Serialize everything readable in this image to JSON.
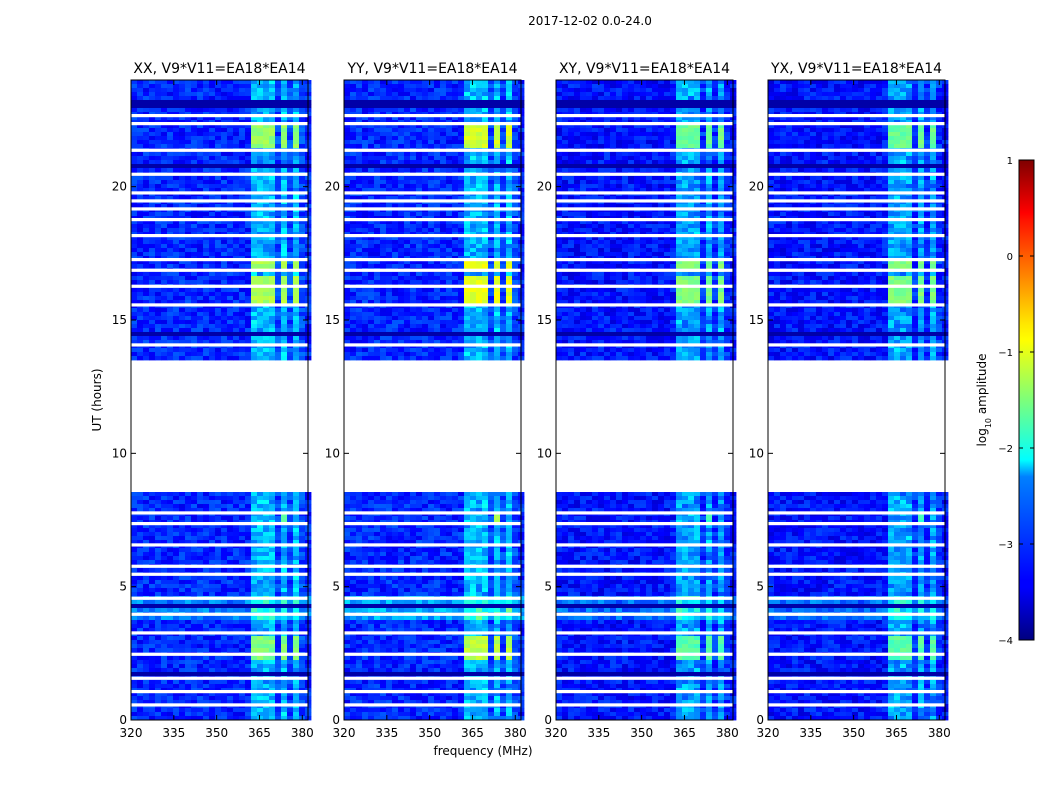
{
  "figure_title": "2017-12-02 0.0-24.0",
  "shared_xlabel": "frequency (MHz)",
  "shared_ylabel": "UT (hours)",
  "colorbar": {
    "label": "log10 amplitude",
    "label_base": "log",
    "label_sub": "10",
    "label_rest": " amplitude",
    "min": -4,
    "max": 1,
    "ticks": [
      "1",
      "0",
      "−1",
      "−2",
      "−3",
      "−4"
    ],
    "tick_values": [
      1,
      0,
      -1,
      -2,
      -3,
      -4
    ],
    "colormap": "jet"
  },
  "chart_data": [
    {
      "type": "heatmap",
      "title": "XX, V9*V11=EA18*EA14",
      "xlabel": "frequency (MHz)",
      "ylabel": "UT (hours)",
      "xlim": [
        320,
        382
      ],
      "ylim": [
        0,
        24
      ],
      "xticks": [
        "320",
        "335",
        "350",
        "365",
        "380"
      ],
      "yticks": [
        "0",
        "5",
        "10",
        "15",
        "20"
      ],
      "background_level": -3.2,
      "strong_block_level": -1.4
    },
    {
      "type": "heatmap",
      "title": "YY, V9*V11=EA18*EA14",
      "xlabel": "frequency (MHz)",
      "ylabel": "",
      "xlim": [
        320,
        382
      ],
      "ylim": [
        0,
        24
      ],
      "xticks": [
        "320",
        "335",
        "350",
        "365",
        "380"
      ],
      "yticks": [
        "0",
        "5",
        "10",
        "15",
        "20"
      ],
      "background_level": -3.2,
      "strong_block_level": -1.1
    },
    {
      "type": "heatmap",
      "title": "XY, V9*V11=EA18*EA14",
      "xlabel": "",
      "ylabel": "",
      "xlim": [
        320,
        382
      ],
      "ylim": [
        0,
        24
      ],
      "xticks": [
        "320",
        "335",
        "350",
        "365",
        "380"
      ],
      "yticks": [
        "0",
        "5",
        "10",
        "15",
        "20"
      ],
      "background_level": -3.3,
      "strong_block_level": -1.6
    },
    {
      "type": "heatmap",
      "title": "YX, V9*V11=EA18*EA14",
      "xlabel": "",
      "ylabel": "",
      "xlim": [
        320,
        382
      ],
      "ylim": [
        0,
        24
      ],
      "xticks": [
        "320",
        "335",
        "350",
        "365",
        "380"
      ],
      "yticks": [
        "0",
        "5",
        "10",
        "15",
        "20"
      ],
      "background_level": -3.3,
      "strong_block_level": -1.6
    }
  ],
  "data_features": {
    "no_data_ut": [
      [
        8.5,
        13.5
      ]
    ],
    "blank_row_ut": [
      0.55,
      1.05,
      1.55,
      2.45,
      3.25,
      3.95,
      4.55,
      5.45,
      5.75,
      6.55,
      7.35,
      7.75,
      14.05,
      15.55,
      16.25,
      16.85,
      17.25,
      18.15,
      18.75,
      19.15,
      19.45,
      19.75,
      20.45,
      21.35,
      22.35,
      22.65
    ],
    "dark_row_ut": [
      1.75,
      4.25,
      14.5,
      20.8,
      23.1
    ],
    "rfi_channels_mhz": [
      [
        362,
        366
      ],
      [
        367,
        371
      ],
      [
        371.5,
        375
      ],
      [
        376,
        379.5
      ]
    ],
    "rfi_ut_ranges": [
      [
        0,
        8.5
      ],
      [
        13.5,
        24
      ]
    ],
    "bright_blocks": [
      {
        "ut": [
          2.3,
          3.2
        ],
        "mhz": [
          362,
          380
        ],
        "level": -1.5
      },
      {
        "ut": [
          15.6,
          16.6
        ],
        "mhz": [
          362,
          380
        ],
        "level": -1.3
      },
      {
        "ut": [
          16.8,
          17.3
        ],
        "mhz": [
          362,
          380
        ],
        "level": -1.3
      },
      {
        "ut": [
          21.4,
          22.3
        ],
        "mhz": [
          362,
          380
        ],
        "level": -1.4
      },
      {
        "ut": [
          7.4,
          7.8
        ],
        "mhz": [
          372,
          376
        ],
        "level": -1.6
      }
    ],
    "broadband_glow_ut": [
      3.7,
      4.6
    ]
  }
}
